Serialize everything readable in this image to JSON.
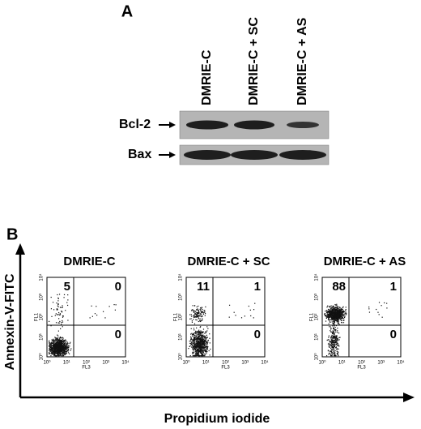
{
  "panel_a": {
    "label": "A",
    "lanes": [
      "DMRIE-C",
      "DMRIE-C + SC",
      "DMRIE-C + AS"
    ],
    "blots": [
      {
        "label": "Bcl-2"
      },
      {
        "label": "Bax"
      }
    ]
  },
  "panel_b": {
    "label": "B",
    "y_axis_label": "Annexin-V-FITC",
    "x_axis_label": "Propidium iodide",
    "plot_x_label": "FL3",
    "plot_y_label": "FL1",
    "tick_labels": [
      "10⁰",
      "10¹",
      "10²",
      "10³",
      "10⁴"
    ],
    "plots": [
      {
        "title": "DMRIE-C",
        "upper_left": "5",
        "upper_right": "0",
        "lower_right": "0"
      },
      {
        "title": "DMRIE-C + SC",
        "upper_left": "11",
        "upper_right": "1",
        "lower_right": "0"
      },
      {
        "title": "DMRIE-C + AS",
        "upper_left": "88",
        "upper_right": "1",
        "lower_right": "0"
      }
    ]
  }
}
